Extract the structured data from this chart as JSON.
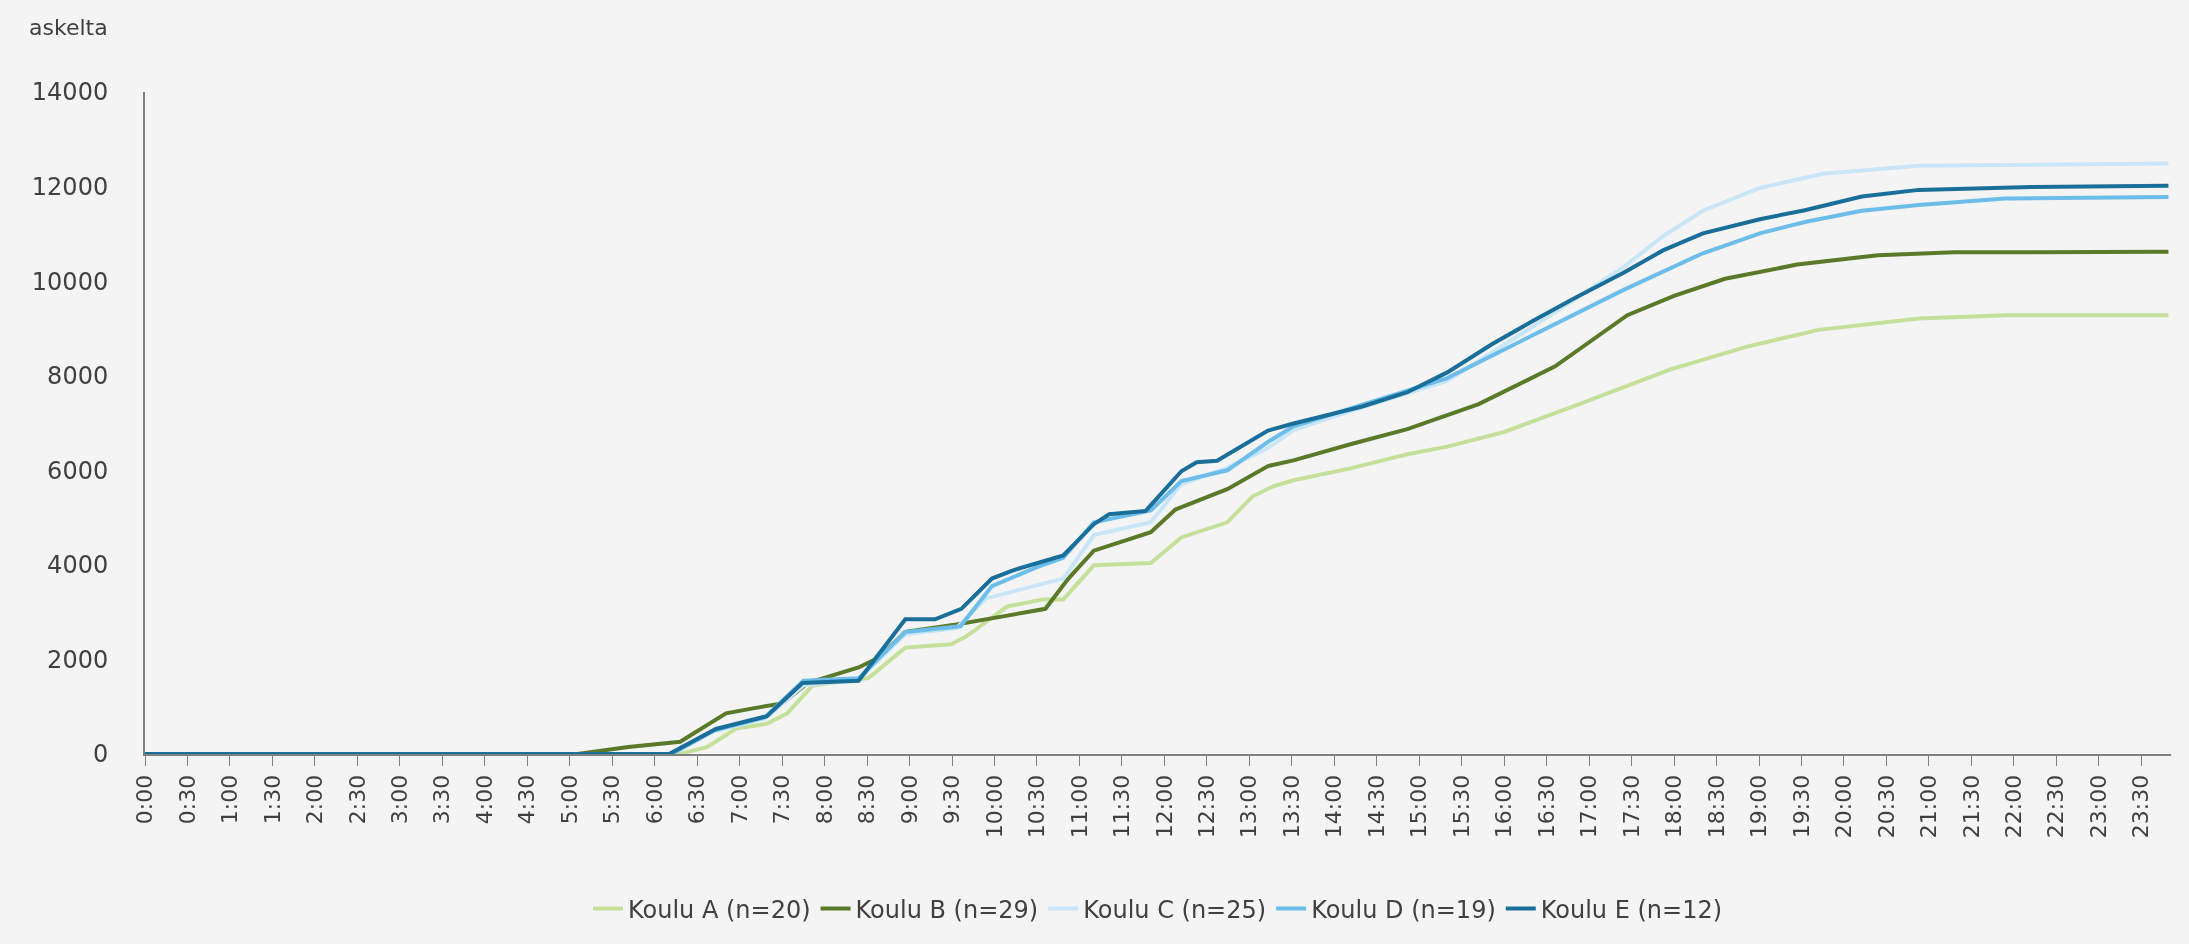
{
  "chart_data": {
    "type": "line",
    "ylabel": "askelta",
    "xlim": [
      0,
      23.85
    ],
    "ylim": [
      0,
      14000
    ],
    "yticks": [
      0,
      2000,
      4000,
      6000,
      8000,
      10000,
      12000,
      14000
    ],
    "xticks": [
      {
        "value": 0,
        "label": "0:00"
      },
      {
        "value": 0.5,
        "label": "0:30"
      },
      {
        "value": 1,
        "label": "1:00"
      },
      {
        "value": 1.5,
        "label": "1:30"
      },
      {
        "value": 2,
        "label": "2:00"
      },
      {
        "value": 2.5,
        "label": "2:30"
      },
      {
        "value": 3,
        "label": "3:00"
      },
      {
        "value": 3.5,
        "label": "3:30"
      },
      {
        "value": 4,
        "label": "4:00"
      },
      {
        "value": 4.5,
        "label": "4:30"
      },
      {
        "value": 5,
        "label": "5:00"
      },
      {
        "value": 5.5,
        "label": "5:30"
      },
      {
        "value": 6,
        "label": "6:00"
      },
      {
        "value": 6.5,
        "label": "6:30"
      },
      {
        "value": 7,
        "label": "7:00"
      },
      {
        "value": 7.5,
        "label": "7:30"
      },
      {
        "value": 8,
        "label": "8:00"
      },
      {
        "value": 8.5,
        "label": "8:30"
      },
      {
        "value": 9,
        "label": "9:00"
      },
      {
        "value": 9.5,
        "label": "9:30"
      },
      {
        "value": 10,
        "label": "10:00"
      },
      {
        "value": 10.5,
        "label": "10:30"
      },
      {
        "value": 11,
        "label": "11:00"
      },
      {
        "value": 11.5,
        "label": "11:30"
      },
      {
        "value": 12,
        "label": "12:00"
      },
      {
        "value": 12.5,
        "label": "12:30"
      },
      {
        "value": 13,
        "label": "13:00"
      },
      {
        "value": 13.5,
        "label": "13:30"
      },
      {
        "value": 14,
        "label": "14:00"
      },
      {
        "value": 14.5,
        "label": "14:30"
      },
      {
        "value": 15,
        "label": "15:00"
      },
      {
        "value": 15.5,
        "label": "15:30"
      },
      {
        "value": 16,
        "label": "16:00"
      },
      {
        "value": 16.5,
        "label": "16:30"
      },
      {
        "value": 17,
        "label": "17:00"
      },
      {
        "value": 17.5,
        "label": "17:30"
      },
      {
        "value": 18,
        "label": "18:00"
      },
      {
        "value": 18.5,
        "label": "18:30"
      },
      {
        "value": 19,
        "label": "19:00"
      },
      {
        "value": 19.5,
        "label": "19:30"
      },
      {
        "value": 20,
        "label": "20:00"
      },
      {
        "value": 20.5,
        "label": "20:30"
      },
      {
        "value": 21,
        "label": "21:00"
      },
      {
        "value": 21.5,
        "label": "21:30"
      },
      {
        "value": 22,
        "label": "22:00"
      },
      {
        "value": 22.5,
        "label": "22:30"
      },
      {
        "value": 23,
        "label": "23:00"
      },
      {
        "value": 23.5,
        "label": "23:30"
      }
    ],
    "grid": false,
    "legend": "bottom",
    "marker": "none",
    "line_style": "solid",
    "series": [
      {
        "name": "Koulu A (n=20)",
        "color": "#c5e09a",
        "x": [
          0,
          6.3,
          6.62,
          6.96,
          7.32,
          7.56,
          7.86,
          8.52,
          8.95,
          9.49,
          9.67,
          10.15,
          10.57,
          10.81,
          11.17,
          11.84,
          12.2,
          12.74,
          13.04,
          13.28,
          13.52,
          14.19,
          14.86,
          15.33,
          16.0,
          16.9,
          17.95,
          18.85,
          19.7,
          20.88,
          21.9,
          23.82
        ],
        "values": [
          0,
          0,
          150,
          540,
          640,
          860,
          1450,
          1610,
          2250,
          2320,
          2490,
          3120,
          3270,
          3270,
          3990,
          4040,
          4580,
          4900,
          5450,
          5660,
          5790,
          6040,
          6340,
          6500,
          6810,
          7410,
          8130,
          8610,
          8970,
          9210,
          9280,
          9280
        ]
      },
      {
        "name": "Koulu B (n=29)",
        "color": "#5a7a2a",
        "x": [
          0,
          5.09,
          5.69,
          6.3,
          6.84,
          7.14,
          7.5,
          7.8,
          8.4,
          8.64,
          8.95,
          9.55,
          10.1,
          10.6,
          10.87,
          11.17,
          11.84,
          12.13,
          12.74,
          13.22,
          13.52,
          14.19,
          14.86,
          15.7,
          16.6,
          17.45,
          18.0,
          18.6,
          19.45,
          20.4,
          21.3,
          23.82
        ],
        "values": [
          0,
          0,
          150,
          260,
          860,
          960,
          1070,
          1500,
          1830,
          2040,
          2580,
          2740,
          2910,
          3070,
          3710,
          4300,
          4690,
          5170,
          5600,
          6090,
          6210,
          6550,
          6870,
          7400,
          8200,
          9280,
          9690,
          10050,
          10350,
          10550,
          10610,
          10620
        ]
      },
      {
        "name": "Koulu C (n=25)",
        "color": "#c8e6f7",
        "x": [
          0,
          6.2,
          6.7,
          7.3,
          7.75,
          8.4,
          8.95,
          9.55,
          9.9,
          10.81,
          11.17,
          11.84,
          12.2,
          12.74,
          13.22,
          13.52,
          14.19,
          15.33,
          16.33,
          17.4,
          17.87,
          18.34,
          19.01,
          19.75,
          20.88,
          23.82
        ],
        "values": [
          0,
          0,
          480,
          750,
          1450,
          1580,
          2530,
          2660,
          3290,
          3710,
          4630,
          4900,
          5710,
          6050,
          6470,
          6850,
          7250,
          7890,
          9030,
          10290,
          10950,
          11490,
          11970,
          12270,
          12440,
          12490
        ]
      },
      {
        "name": "Koulu D (n=19)",
        "color": "#6cbde9",
        "x": [
          0,
          6.2,
          6.7,
          7.3,
          7.75,
          8.4,
          8.95,
          9.6,
          9.97,
          10.5,
          10.81,
          11.17,
          11.84,
          12.2,
          12.74,
          13.22,
          13.52,
          15.33,
          16.33,
          17.4,
          18.34,
          19.01,
          19.54,
          20.21,
          20.88,
          21.9,
          23.82
        ],
        "values": [
          0,
          0,
          500,
          780,
          1550,
          1600,
          2580,
          2700,
          3550,
          3950,
          4150,
          4900,
          5150,
          5770,
          6000,
          6600,
          6930,
          7950,
          8850,
          9810,
          10590,
          11010,
          11250,
          11490,
          11610,
          11750,
          11780
        ]
      },
      {
        "name": "Koulu E (n=12)",
        "color": "#1a6e9a",
        "x": [
          0,
          6.17,
          6.72,
          7.32,
          7.74,
          8.4,
          8.95,
          9.3,
          9.61,
          9.97,
          10.21,
          10.81,
          11.17,
          11.35,
          11.78,
          12.2,
          12.38,
          12.62,
          13.22,
          13.52,
          14.33,
          14.86,
          15.33,
          15.86,
          16.33,
          16.86,
          17.4,
          17.87,
          18.34,
          19.01,
          19.54,
          20.21,
          20.88,
          22.2,
          23.82
        ],
        "values": [
          0,
          0,
          530,
          800,
          1500,
          1550,
          2850,
          2850,
          3070,
          3710,
          3880,
          4200,
          4860,
          5070,
          5140,
          5980,
          6170,
          6200,
          6840,
          6990,
          7350,
          7650,
          8070,
          8670,
          9150,
          9670,
          10170,
          10650,
          11010,
          11310,
          11500,
          11790,
          11930,
          11990,
          12020
        ]
      }
    ]
  }
}
